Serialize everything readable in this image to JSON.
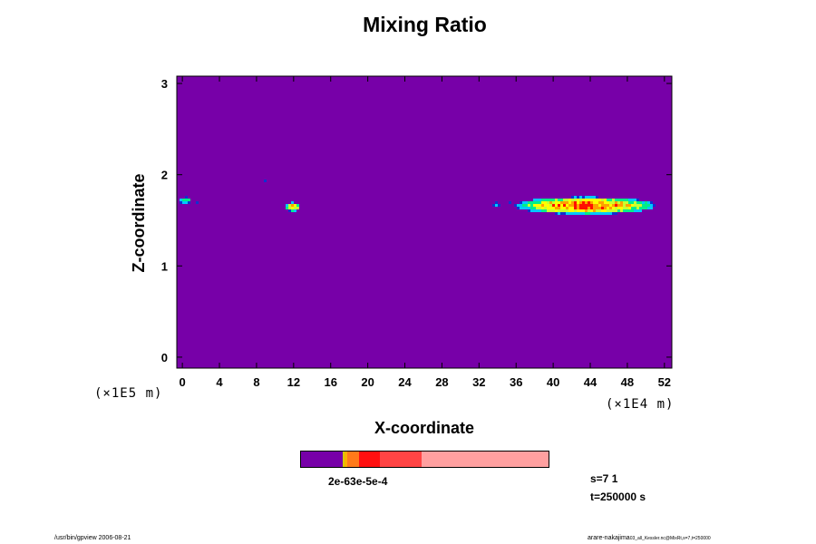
{
  "chart_data": {
    "type": "heatmap",
    "title": "Mixing Ratio",
    "xlabel": "X-coordinate",
    "ylabel": "Z-coordinate",
    "x_ticks": [
      "0",
      "4",
      "8",
      "12",
      "16",
      "20",
      "24",
      "28",
      "32",
      "36",
      "40",
      "44",
      "48",
      "52"
    ],
    "y_ticks": [
      "0",
      "1",
      "2",
      "3"
    ],
    "xlim": [
      -0.6,
      52.8
    ],
    "ylim": [
      -0.12,
      3.08
    ],
    "x_scale_label": "(×1E4 m)",
    "y_scale_label": "(×1E5 m)",
    "background_color": "#7700a8",
    "features": [
      {
        "x_center": 0.3,
        "x_half_width": 0.7,
        "y_center": 1.72,
        "y_half_height": 0.035,
        "peak": 0.55
      },
      {
        "x_center": 1.6,
        "x_half_width": 0.4,
        "y_center": 1.7,
        "y_half_height": 0.02,
        "peak": 0.15
      },
      {
        "x_center": 9.1,
        "x_half_width": 0.55,
        "y_center": 1.93,
        "y_half_height": 0.018,
        "peak": 0.15
      },
      {
        "x_center": 11.9,
        "x_half_width": 0.8,
        "y_center": 1.645,
        "y_half_height": 0.05,
        "peak": 0.85
      },
      {
        "x_center": 33.9,
        "x_half_width": 0.4,
        "y_center": 1.67,
        "y_half_height": 0.03,
        "peak": 0.3
      },
      {
        "x_center": 35.4,
        "x_half_width": 0.4,
        "y_center": 1.7,
        "y_half_height": 0.02,
        "peak": 0.15
      },
      {
        "x_center": 43.5,
        "x_half_width": 7.6,
        "y_center": 1.66,
        "y_half_height": 0.095,
        "peak": 1.0
      }
    ],
    "colormap": [
      "#7700a8",
      "#1030d0",
      "#00c8ff",
      "#00ee88",
      "#c8ff30",
      "#ffff00",
      "#ffa000",
      "#ff1000"
    ]
  },
  "colorbar": {
    "segments": [
      {
        "color": "#7700a8",
        "weight": 46
      },
      {
        "color": "#d8c800",
        "weight": 2
      },
      {
        "color": "#ffb000",
        "weight": 3
      },
      {
        "color": "#ff7a1a",
        "weight": 13
      },
      {
        "color": "#ff1010",
        "weight": 23
      },
      {
        "color": "#ff4444",
        "weight": 46
      },
      {
        "color": "#ffa0a0",
        "weight": 139
      }
    ],
    "label": "2e-63e-5e-4"
  },
  "info": {
    "s_label": "s=7 1",
    "t_label": "t=250000 s"
  },
  "footer": {
    "left": "/usr/bin/gpview 2006-08-21",
    "right_main": "arare-nakajima",
    "right_small": "03_all_Kessler.nc@MixRt,s=7,t=250000"
  }
}
